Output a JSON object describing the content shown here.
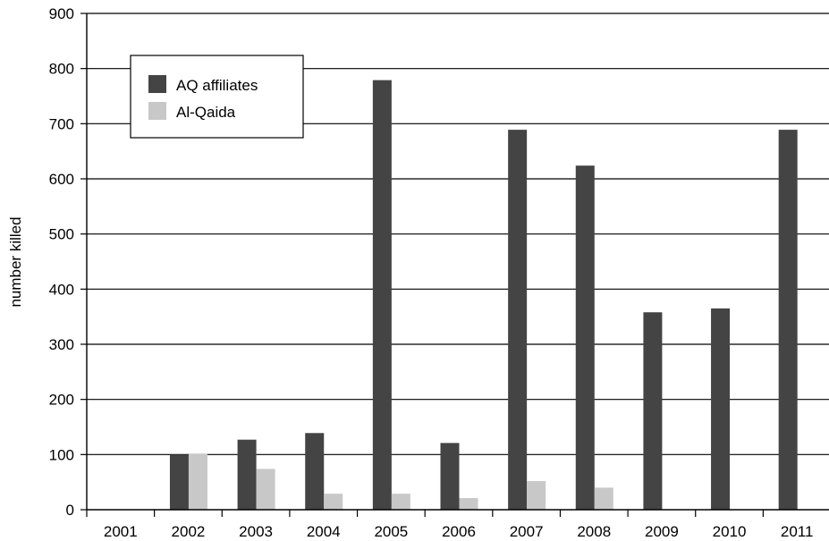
{
  "chart_data": {
    "type": "bar",
    "title": "",
    "xlabel": "",
    "ylabel": "number killed",
    "ylim": [
      0,
      900
    ],
    "yticks": [
      0,
      100,
      200,
      300,
      400,
      500,
      600,
      700,
      800,
      900
    ],
    "grid": true,
    "legend_position": "top-left",
    "categories": [
      "2001",
      "2002",
      "2003",
      "2004",
      "2005",
      "2006",
      "2007",
      "2008",
      "2009",
      "2010",
      "2011"
    ],
    "series": [
      {
        "name": "AQ affiliates",
        "color": "#444444",
        "values": [
          0,
          100,
          127,
          139,
          779,
          121,
          689,
          624,
          358,
          365,
          689
        ]
      },
      {
        "name": "Al-Qaida",
        "color": "#c8c8c8",
        "values": [
          0,
          101,
          74,
          29,
          29,
          21,
          52,
          40,
          0,
          0,
          0
        ]
      }
    ]
  }
}
